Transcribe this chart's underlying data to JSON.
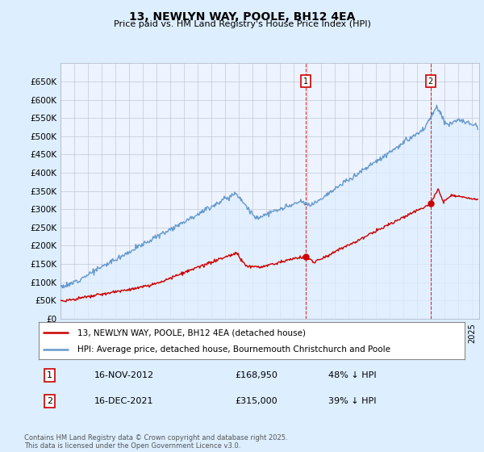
{
  "title": "13, NEWLYN WAY, POOLE, BH12 4EA",
  "subtitle": "Price paid vs. HM Land Registry's House Price Index (HPI)",
  "footer": "Contains HM Land Registry data © Crown copyright and database right 2025.\nThis data is licensed under the Open Government Licence v3.0.",
  "legend_line1": "13, NEWLYN WAY, POOLE, BH12 4EA (detached house)",
  "legend_line2": "HPI: Average price, detached house, Bournemouth Christchurch and Poole",
  "annotation1_label": "1",
  "annotation1_date": "16-NOV-2012",
  "annotation1_price": "£168,950",
  "annotation1_hpi": "48% ↓ HPI",
  "annotation2_label": "2",
  "annotation2_date": "16-DEC-2021",
  "annotation2_price": "£315,000",
  "annotation2_hpi": "39% ↓ HPI",
  "red_color": "#cc0000",
  "blue_color": "#6699cc",
  "blue_fill_color": "#ddeeff",
  "background_color": "#ddeeff",
  "plot_bg_color": "#eef4ff",
  "ylim": [
    0,
    700000
  ],
  "yticks": [
    0,
    50000,
    100000,
    150000,
    200000,
    250000,
    300000,
    350000,
    400000,
    450000,
    500000,
    550000,
    600000,
    650000
  ],
  "marker1_x": 2012.88,
  "marker1_y_red": 168950,
  "marker2_x": 2021.96,
  "marker2_y_red": 315000,
  "vline1_x": 2012.88,
  "vline2_x": 2021.96,
  "xmin": 1995,
  "xmax": 2025.5
}
